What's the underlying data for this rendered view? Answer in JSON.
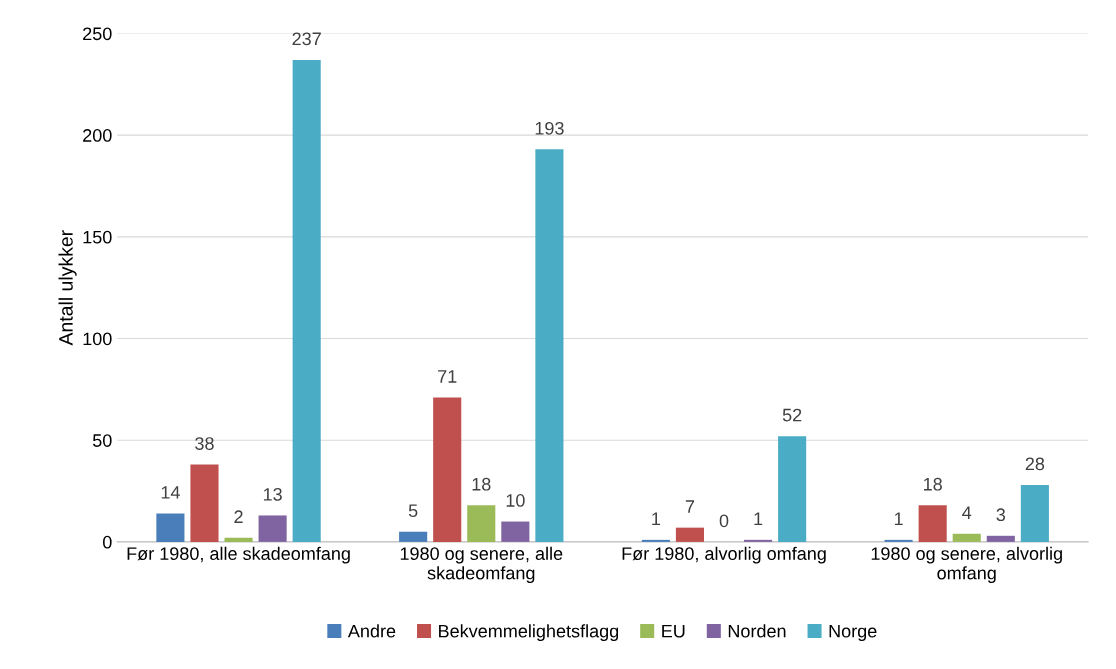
{
  "chart_data": {
    "type": "bar",
    "ylabel": "Antall ulykker",
    "categories": [
      "Før 1980, alle skadeomfang",
      "1980 og senere, alle\nskadeomfang",
      "Før 1980, alvorlig omfang",
      "1980 og senere, alvorlig\nomfang"
    ],
    "series": [
      {
        "name": "Andre",
        "color": "#4a7ebb",
        "values": [
          14,
          5,
          1,
          1
        ]
      },
      {
        "name": "Bekvemmelighetsflagg",
        "color": "#c0504d",
        "values": [
          38,
          71,
          7,
          18
        ]
      },
      {
        "name": "EU",
        "color": "#9bbb59",
        "values": [
          2,
          18,
          0,
          4
        ]
      },
      {
        "name": "Norden",
        "color": "#8064a2",
        "values": [
          13,
          10,
          1,
          3
        ]
      },
      {
        "name": "Norge",
        "color": "#4bacc6",
        "values": [
          237,
          193,
          52,
          28
        ]
      }
    ],
    "ylim": [
      0,
      250
    ],
    "yticks": [
      0,
      50,
      100,
      150,
      200,
      250
    ],
    "grid": "y",
    "legend": "bottom",
    "data_labels": true
  }
}
